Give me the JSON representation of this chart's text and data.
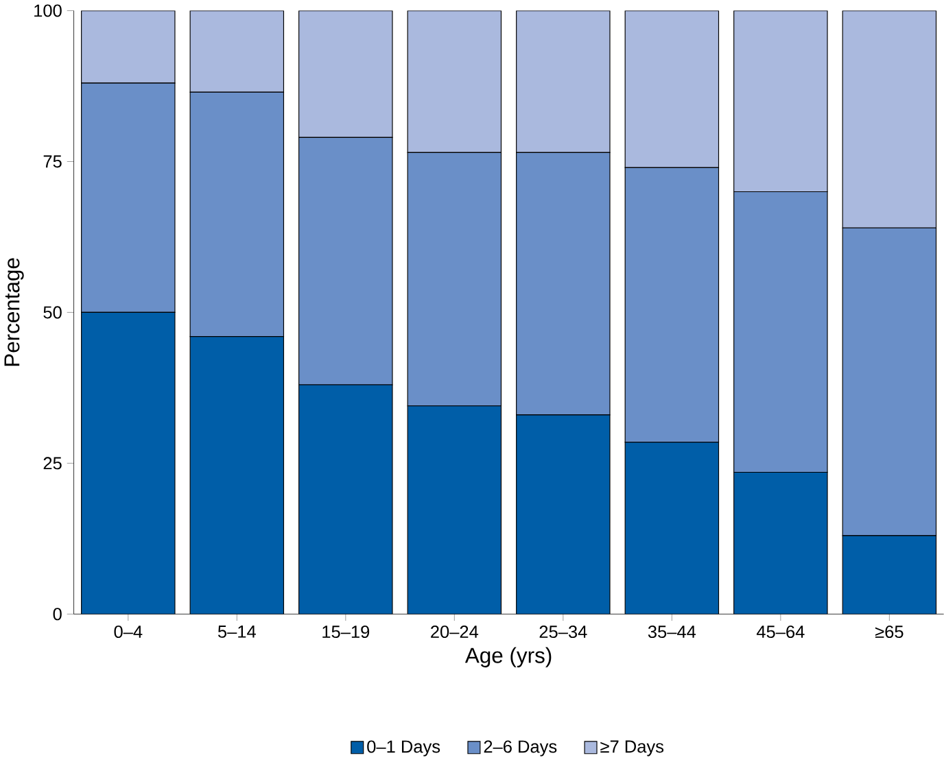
{
  "chart_data": {
    "type": "bar",
    "stacked": true,
    "xlabel": "Age (yrs)",
    "ylabel": "Percentage",
    "categories": [
      "0–4",
      "5–14",
      "15–19",
      "20–24",
      "25–34",
      "35–44",
      "45–64",
      "≥65"
    ],
    "series": [
      {
        "name": "0–1 Days",
        "color": "#005ea8",
        "values": [
          50,
          46,
          38,
          34.5,
          33,
          28.5,
          23.5,
          13
        ]
      },
      {
        "name": "2–6 Days",
        "color": "#6a8fc8",
        "values": [
          38,
          40.5,
          41,
          42,
          43.5,
          45.5,
          46.5,
          51
        ]
      },
      {
        "name": "≥7 Days",
        "color": "#aab9de",
        "values": [
          12,
          13.5,
          21,
          23.5,
          23.5,
          26,
          30,
          36
        ]
      }
    ],
    "ylim": [
      0,
      100
    ],
    "yticks": [
      0,
      25,
      50,
      75,
      100
    ],
    "grid": false,
    "legend": "bottom"
  }
}
